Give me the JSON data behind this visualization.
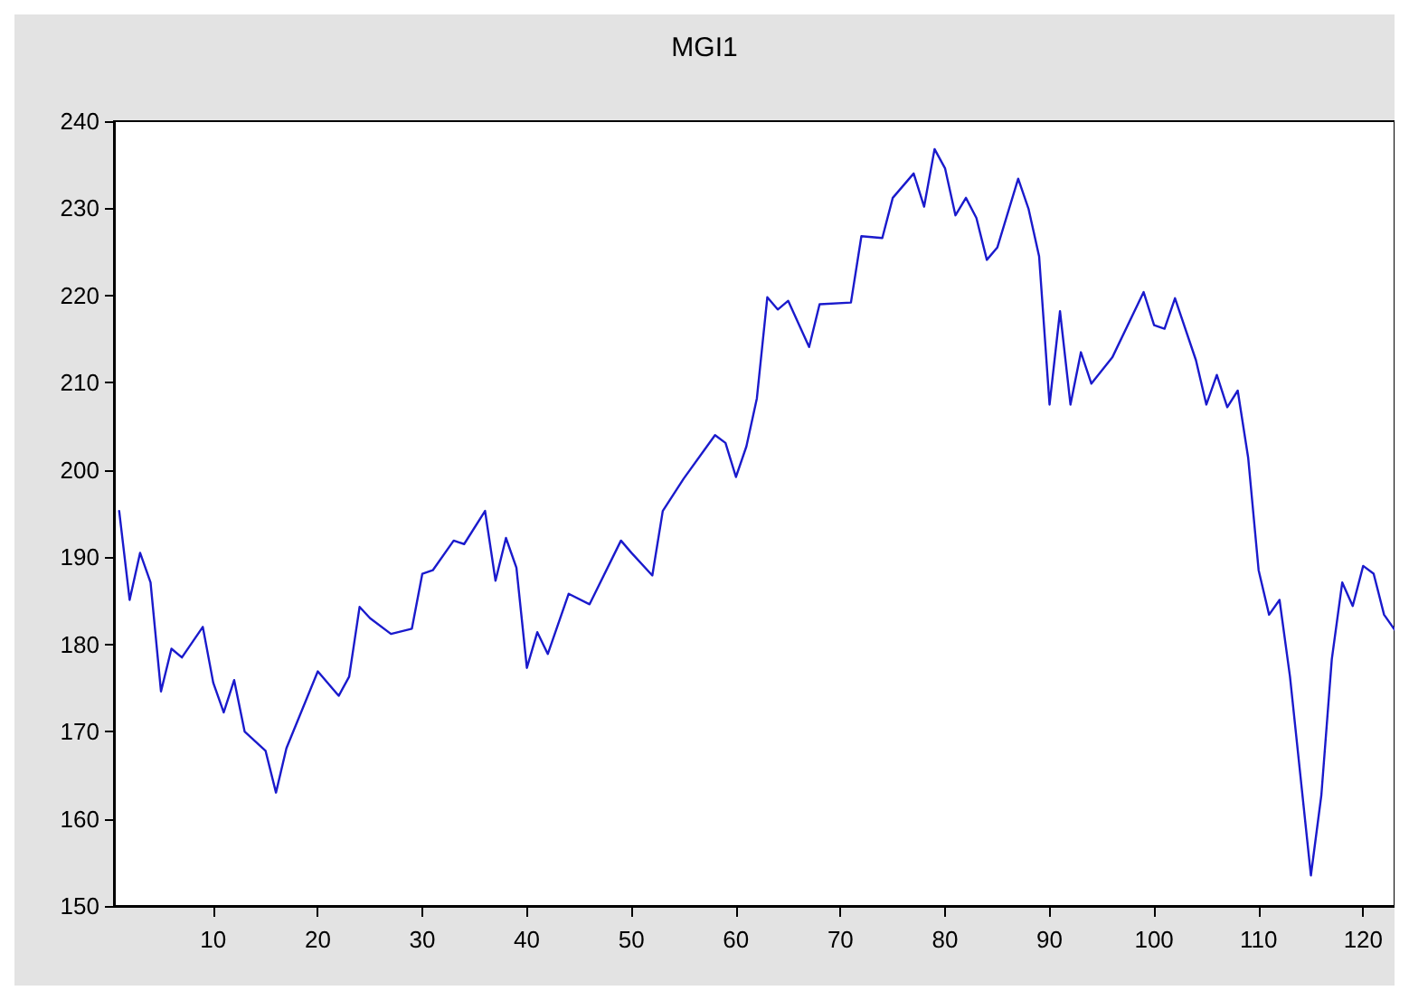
{
  "chart_data": {
    "type": "line",
    "title": "MGI1",
    "x": [
      1,
      2,
      3,
      4,
      5,
      6,
      7,
      9,
      10,
      11,
      12,
      13,
      15,
      16,
      17,
      20,
      22,
      23,
      24,
      25,
      27,
      29,
      30,
      31,
      33,
      34,
      36,
      37,
      38,
      39,
      40,
      41,
      42,
      44,
      46,
      49,
      50,
      52,
      53,
      55,
      58,
      59,
      60,
      61,
      62,
      63,
      64,
      65,
      67,
      68,
      71,
      72,
      74,
      75,
      77,
      78,
      79,
      80,
      81,
      82,
      83,
      84,
      85,
      87,
      88,
      89,
      90,
      91,
      92,
      93,
      94,
      96,
      99,
      100,
      101,
      102,
      104,
      105,
      106,
      107,
      108,
      109,
      110,
      111,
      112,
      113,
      115,
      116,
      117,
      118,
      119,
      120,
      121,
      122,
      123
    ],
    "series": [
      {
        "color": "#1a1acc",
        "values": [
          195.3,
          185.1,
          190.5,
          187.1,
          174.6,
          179.5,
          178.5,
          182,
          175.6,
          172.2,
          175.9,
          170,
          167.8,
          163,
          168.1,
          176.9,
          174.1,
          176.3,
          184.3,
          183,
          181.2,
          181.8,
          188.1,
          188.5,
          191.9,
          191.5,
          195.3,
          187.3,
          192.2,
          188.8,
          177.3,
          181.4,
          178.9,
          185.8,
          184.6,
          191.9,
          190.5,
          187.9,
          195.3,
          199,
          204,
          203.1,
          199.2,
          202.7,
          208.2,
          219.8,
          218.4,
          219.4,
          214.1,
          219,
          219.2,
          226.8,
          226.6,
          231.2,
          234,
          230.2,
          236.8,
          234.6,
          229.2,
          231.2,
          228.9,
          224.1,
          225.5,
          233.4,
          229.9,
          224.5,
          207.5,
          218.2,
          207.5,
          213.5,
          209.9,
          212.9,
          220.4,
          216.6,
          216.2,
          219.7,
          212.6,
          207.5,
          210.9,
          207.2,
          209.1,
          201.4,
          188.5,
          183.4,
          185.1,
          176.3,
          153.5,
          162.7,
          178.3,
          187.1,
          184.4,
          189,
          188.1,
          183.4,
          181.7
        ]
      }
    ],
    "xlim": [
      0.5,
      123
    ],
    "xticks": [
      10,
      20,
      30,
      40,
      50,
      60,
      70,
      80,
      90,
      100,
      110,
      120
    ],
    "ylim": [
      150,
      240
    ],
    "yticks": [
      150,
      160,
      170,
      180,
      190,
      200,
      210,
      220,
      230,
      240
    ],
    "grid": false,
    "marker": "none",
    "line_style": "solid"
  }
}
